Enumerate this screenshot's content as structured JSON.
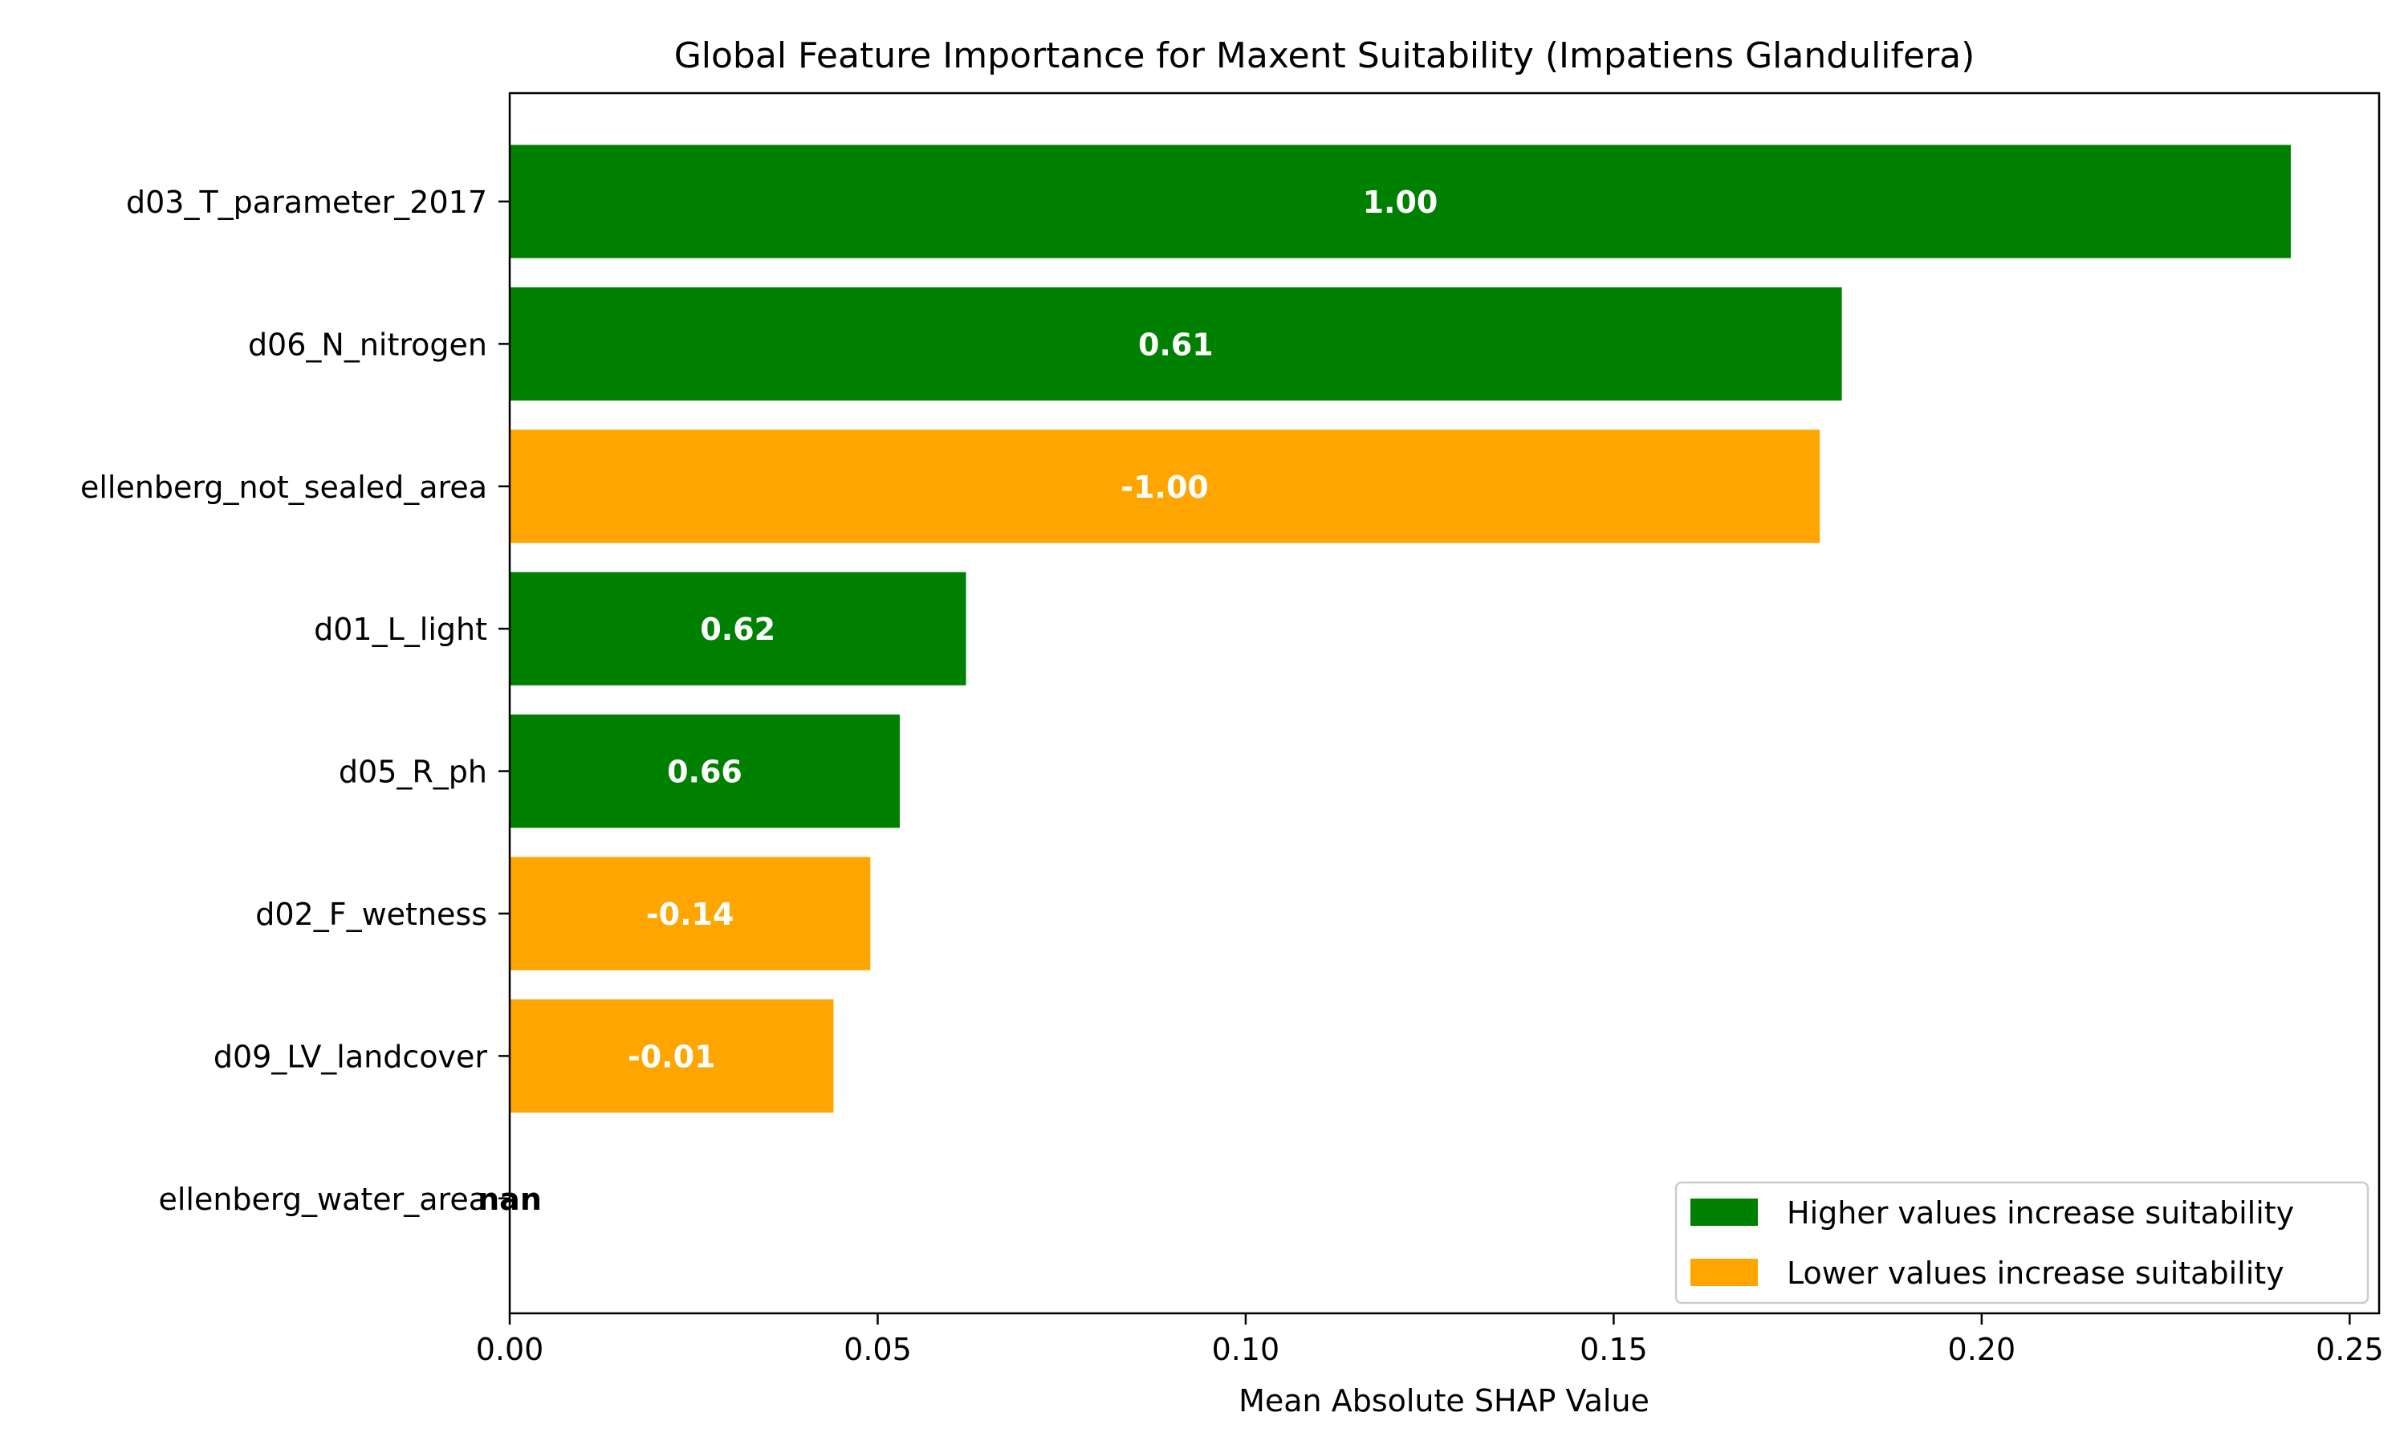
{
  "chart_data": {
    "type": "bar",
    "orientation": "horizontal",
    "title": "Global Feature Importance for Maxent Suitability (Impatiens Glandulifera)",
    "xlabel": "Mean Absolute SHAP Value",
    "ylabel": "",
    "xlim": [
      0,
      0.254
    ],
    "x_ticks": [
      {
        "value": 0.0,
        "label": "0.00"
      },
      {
        "value": 0.05,
        "label": "0.05"
      },
      {
        "value": 0.1,
        "label": "0.10"
      },
      {
        "value": 0.15,
        "label": "0.15"
      },
      {
        "value": 0.2,
        "label": "0.20"
      },
      {
        "value": 0.25,
        "label": "0.25"
      }
    ],
    "grid": false,
    "legend_position": "bottom-right",
    "colors": {
      "higher": "#008000",
      "lower": "#ffa500"
    },
    "legend": [
      {
        "key": "higher",
        "label": "Higher values increase suitability"
      },
      {
        "key": "lower",
        "label": "Lower values increase suitability"
      }
    ],
    "bars": [
      {
        "category": "d03_T_parameter_2017",
        "value": 0.242,
        "direction": "higher",
        "label": "1.00"
      },
      {
        "category": "d06_N_nitrogen",
        "value": 0.181,
        "direction": "higher",
        "label": "0.61"
      },
      {
        "category": "ellenberg_not_sealed_area",
        "value": 0.178,
        "direction": "lower",
        "label": "-1.00"
      },
      {
        "category": "d01_L_light",
        "value": 0.062,
        "direction": "higher",
        "label": "0.62"
      },
      {
        "category": "d05_R_ph",
        "value": 0.053,
        "direction": "higher",
        "label": "0.66"
      },
      {
        "category": "d02_F_wetness",
        "value": 0.049,
        "direction": "lower",
        "label": "-0.14"
      },
      {
        "category": "d09_LV_landcover",
        "value": 0.044,
        "direction": "lower",
        "label": "-0.01"
      },
      {
        "category": "ellenberg_water_area",
        "value": 0,
        "direction": "none",
        "label": "nan"
      }
    ]
  }
}
